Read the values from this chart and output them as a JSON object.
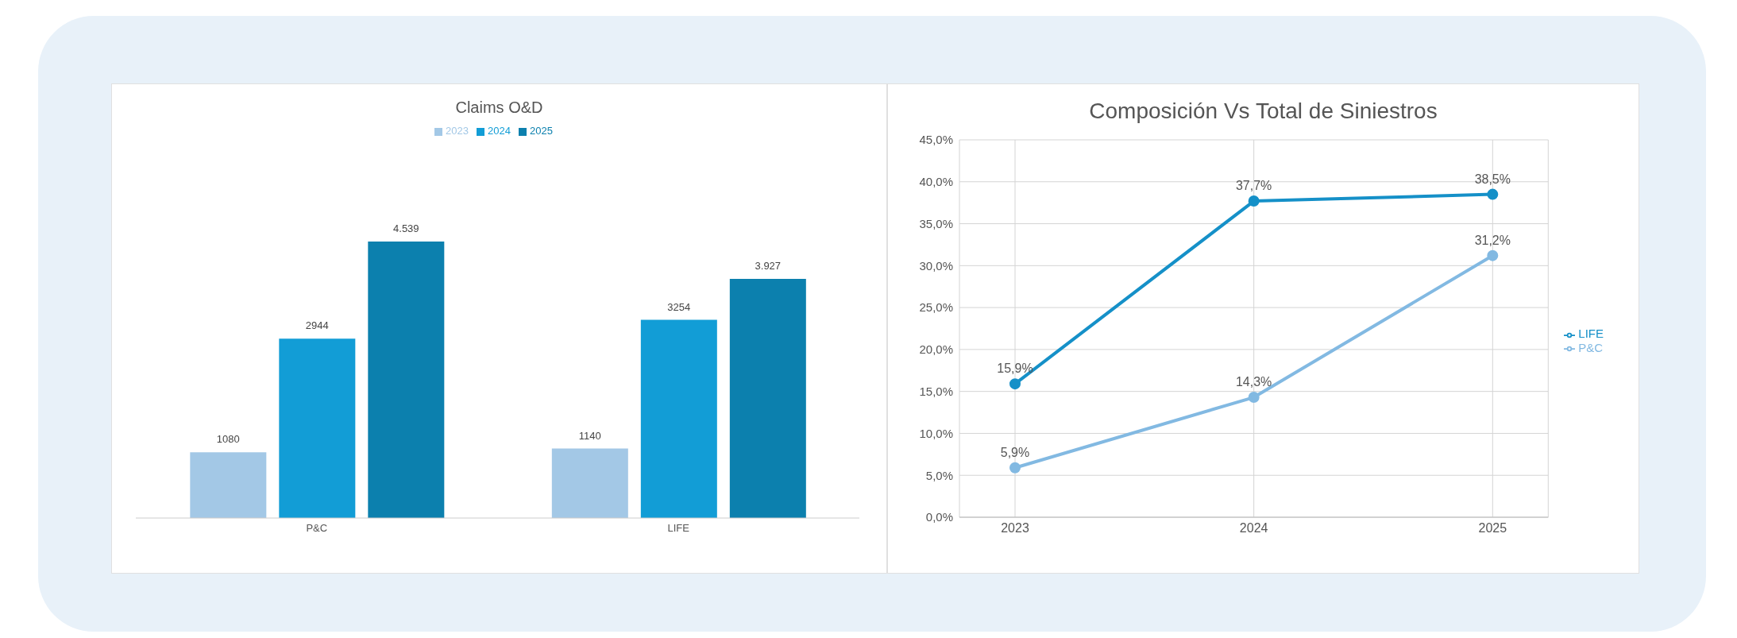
{
  "chart_data": [
    {
      "type": "bar",
      "title": "Claims O&D",
      "categories": [
        "P&C",
        "LIFE"
      ],
      "legend": "top",
      "grid": false,
      "series": [
        {
          "name": "2023",
          "color": "#a3c8e6",
          "values": [
            1080,
            1140
          ],
          "value_labels": [
            "1080",
            "1140"
          ]
        },
        {
          "name": "2024",
          "color": "#129dd6",
          "values": [
            2944,
            3254
          ],
          "value_labels": [
            "2944",
            "3254"
          ]
        },
        {
          "name": "2025",
          "color": "#0c80ae",
          "values": [
            4539,
            3927
          ],
          "value_labels": [
            "4.539",
            "3.927"
          ]
        }
      ]
    },
    {
      "type": "line",
      "title": "Composición Vs Total de Siniestros",
      "categories": [
        "2023",
        "2024",
        "2025"
      ],
      "legend": "right",
      "grid": true,
      "marker": "circle",
      "ylim": [
        0,
        45
      ],
      "yticks": [
        {
          "value": 0,
          "label": "0,0%"
        },
        {
          "value": 5,
          "label": "5,0%"
        },
        {
          "value": 10,
          "label": "10,0%"
        },
        {
          "value": 15,
          "label": "15,0%"
        },
        {
          "value": 20,
          "label": "20,0%"
        },
        {
          "value": 25,
          "label": "25,0%"
        },
        {
          "value": 30,
          "label": "30,0%"
        },
        {
          "value": 35,
          "label": "35,0%"
        },
        {
          "value": 40,
          "label": "40,0%"
        },
        {
          "value": 45,
          "label": "45,0%"
        }
      ],
      "series": [
        {
          "name": "P&C",
          "color": "#82b9e2",
          "values": [
            5.9,
            14.3,
            31.2
          ],
          "value_labels": [
            "5,9%",
            "14,3%",
            "31,2%"
          ]
        },
        {
          "name": "LIFE",
          "color": "#1590c8",
          "values": [
            15.9,
            37.7,
            38.5
          ],
          "value_labels": [
            "15,9%",
            "37,7%",
            "38,5%"
          ]
        }
      ]
    }
  ]
}
